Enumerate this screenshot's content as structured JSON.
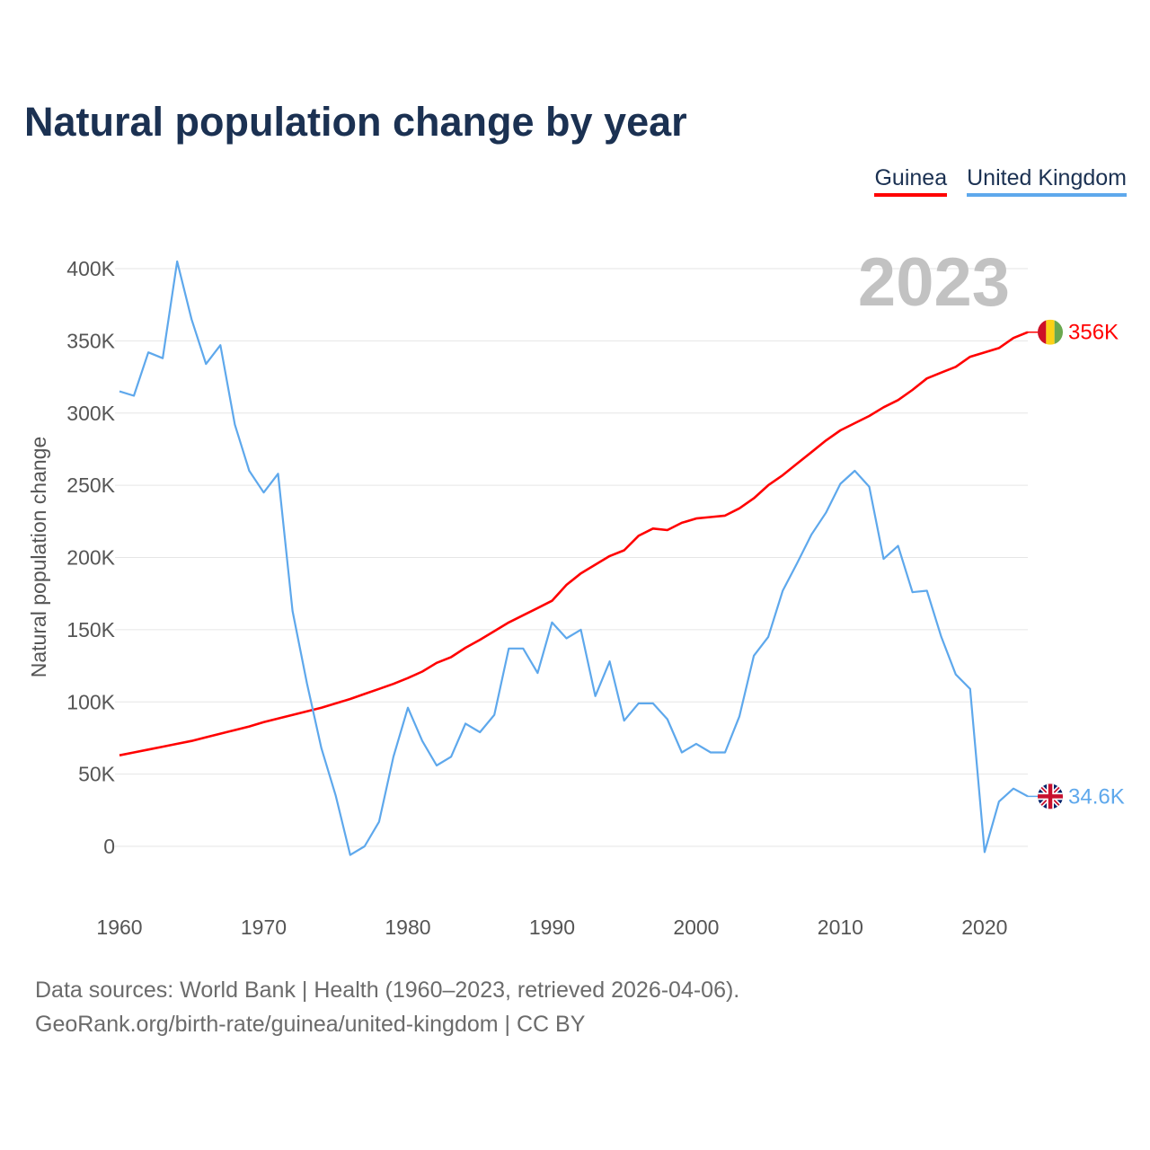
{
  "chart_data": {
    "type": "line",
    "title": "Natural population change by year",
    "ylabel": "Natural population change",
    "xlabel": "",
    "year_badge": "2023",
    "xlim": [
      1960,
      2023
    ],
    "ylim": [
      -30000,
      420000
    ],
    "x_ticks": [
      1960,
      1970,
      1980,
      1990,
      2000,
      2010,
      2020
    ],
    "y_ticks": [
      0,
      50000,
      100000,
      150000,
      200000,
      250000,
      300000,
      350000,
      400000
    ],
    "y_tick_labels": [
      "0",
      "50K",
      "100K",
      "150K",
      "200K",
      "250K",
      "300K",
      "350K",
      "400K"
    ],
    "grid": true,
    "legend_position": "top-right",
    "x": [
      1960,
      1961,
      1962,
      1963,
      1964,
      1965,
      1966,
      1967,
      1968,
      1969,
      1970,
      1971,
      1972,
      1973,
      1974,
      1975,
      1976,
      1977,
      1978,
      1979,
      1980,
      1981,
      1982,
      1983,
      1984,
      1985,
      1986,
      1987,
      1988,
      1989,
      1990,
      1991,
      1992,
      1993,
      1994,
      1995,
      1996,
      1997,
      1998,
      1999,
      2000,
      2001,
      2002,
      2003,
      2004,
      2005,
      2006,
      2007,
      2008,
      2009,
      2010,
      2011,
      2012,
      2013,
      2014,
      2015,
      2016,
      2017,
      2018,
      2019,
      2020,
      2021,
      2022,
      2023
    ],
    "series": [
      {
        "name": "Guinea",
        "color": "#ff0000",
        "end_label": "356K",
        "flag": "guinea-flag",
        "values": [
          63000,
          65000,
          67000,
          69000,
          71000,
          73000,
          75500,
          78000,
          80500,
          83000,
          86000,
          88500,
          91000,
          93500,
          96000,
          99000,
          102000,
          105500,
          109000,
          112500,
          116500,
          121000,
          127000,
          131000,
          137500,
          143000,
          149000,
          155000,
          160000,
          165000,
          170000,
          181000,
          189000,
          195000,
          201000,
          205000,
          215000,
          220000,
          219000,
          224000,
          227000,
          228000,
          229000,
          234000,
          241000,
          250000,
          257000,
          265000,
          273000,
          281000,
          288000,
          293000,
          298000,
          304000,
          309000,
          316000,
          324000,
          328000,
          332000,
          339000,
          342000,
          345000,
          352000,
          356000
        ]
      },
      {
        "name": "United Kingdom",
        "color": "#5ea8ec",
        "end_label": "34.6K",
        "flag": "uk-flag",
        "values": [
          315000,
          312000,
          342000,
          338000,
          405000,
          365000,
          334000,
          347000,
          292000,
          260000,
          245000,
          258000,
          163000,
          113000,
          68000,
          35000,
          -6000,
          0,
          17000,
          62000,
          96000,
          73000,
          56000,
          62000,
          85000,
          79000,
          91000,
          137000,
          137000,
          120000,
          155000,
          144000,
          150000,
          104000,
          128000,
          87000,
          99000,
          99000,
          88000,
          65000,
          71000,
          65000,
          65000,
          90000,
          132000,
          145000,
          177000,
          196000,
          216000,
          231000,
          251000,
          260000,
          249000,
          199000,
          208000,
          176000,
          177000,
          145000,
          119000,
          109000,
          -4000,
          31000,
          40000,
          34600
        ]
      }
    ]
  },
  "footer": {
    "line1": "Data sources: World Bank | Health (1960–2023, retrieved 2026-04-06).",
    "line2": "GeoRank.org/birth-rate/guinea/united-kingdom | CC BY"
  }
}
